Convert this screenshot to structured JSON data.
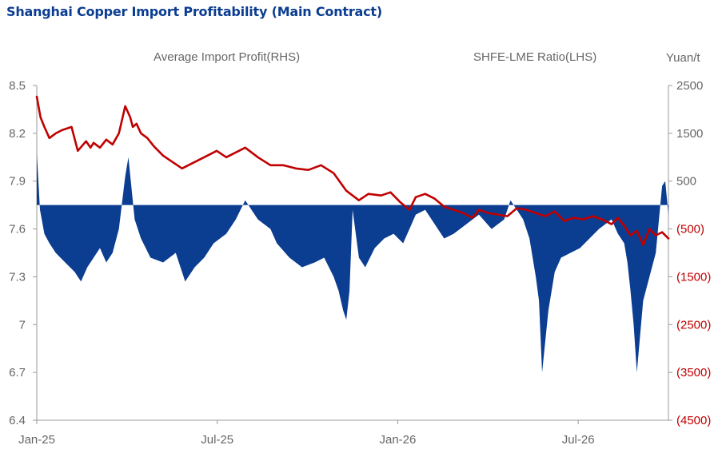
{
  "chart_data": {
    "type": "area+line",
    "title": "Shanghai Copper Import Profitability (Main Contract)",
    "legend": [
      "Average Import Profit(RHS)",
      "SHFE-LME Ratio(LHS)"
    ],
    "unit_right": "Yuan/t",
    "x_ticks": [
      "Jan-25",
      "Jul-25",
      "Jan-26",
      "Jul-26"
    ],
    "x_range": [
      "2025-01",
      "2026-10"
    ],
    "left_axis": {
      "min": 6.4,
      "max": 8.5,
      "step": 0.3,
      "labels": [
        "8.5",
        "8.2",
        "7.9",
        "7.6",
        "7.3",
        "7",
        "6.7",
        "6.4"
      ]
    },
    "right_axis": {
      "min": -4500,
      "max": 2500,
      "step": 1000,
      "labels": [
        "2500",
        "1500",
        "500",
        "(500)",
        "(1500)",
        "(2500)",
        "(3500)",
        "(4500)"
      ]
    },
    "colors": {
      "profit": "#0b3d91",
      "ratio": "#c00000",
      "negative_label": "#c00000",
      "axis_text": "#666666"
    },
    "series": [
      {
        "name": "SHFE-LME Ratio(LHS)",
        "axis": "left",
        "style": "line",
        "x": [
          0,
          0.006,
          0.012,
          0.02,
          0.03,
          0.04,
          0.055,
          0.065,
          0.078,
          0.085,
          0.09,
          0.1,
          0.11,
          0.12,
          0.13,
          0.14,
          0.148,
          0.152,
          0.158,
          0.165,
          0.175,
          0.185,
          0.2,
          0.215,
          0.23,
          0.24,
          0.255,
          0.27,
          0.285,
          0.3,
          0.315,
          0.33,
          0.35,
          0.37,
          0.39,
          0.41,
          0.43,
          0.45,
          0.47,
          0.49,
          0.51,
          0.525,
          0.545,
          0.56,
          0.575,
          0.59,
          0.6,
          0.615,
          0.63,
          0.645,
          0.66,
          0.675,
          0.69,
          0.7,
          0.715,
          0.73,
          0.745,
          0.76,
          0.775,
          0.79,
          0.805,
          0.82,
          0.835,
          0.85,
          0.865,
          0.88,
          0.895,
          0.91,
          0.92,
          0.93,
          0.94,
          0.95,
          0.96,
          0.97,
          0.98,
          0.99,
          1.0
        ],
        "values": [
          8.43,
          8.3,
          8.24,
          8.17,
          8.2,
          8.22,
          8.24,
          8.09,
          8.15,
          8.11,
          8.14,
          8.11,
          8.16,
          8.13,
          8.2,
          8.37,
          8.3,
          8.24,
          8.26,
          8.2,
          8.17,
          8.12,
          8.06,
          8.02,
          7.98,
          8.0,
          8.03,
          8.06,
          8.09,
          8.05,
          8.08,
          8.11,
          8.05,
          8.0,
          8.0,
          7.98,
          7.97,
          8.0,
          7.95,
          7.84,
          7.78,
          7.82,
          7.81,
          7.83,
          7.77,
          7.72,
          7.8,
          7.82,
          7.79,
          7.74,
          7.72,
          7.7,
          7.67,
          7.72,
          7.7,
          7.69,
          7.68,
          7.73,
          7.72,
          7.7,
          7.68,
          7.71,
          7.65,
          7.67,
          7.66,
          7.68,
          7.66,
          7.63,
          7.67,
          7.62,
          7.56,
          7.59,
          7.5,
          7.6,
          7.56,
          7.58,
          7.54
        ]
      },
      {
        "name": "Average Import Profit(RHS)",
        "axis": "right",
        "style": "area",
        "x": [
          0,
          0.005,
          0.012,
          0.02,
          0.03,
          0.045,
          0.06,
          0.07,
          0.08,
          0.09,
          0.1,
          0.11,
          0.12,
          0.13,
          0.14,
          0.145,
          0.155,
          0.165,
          0.18,
          0.2,
          0.22,
          0.235,
          0.25,
          0.265,
          0.28,
          0.3,
          0.315,
          0.33,
          0.35,
          0.37,
          0.38,
          0.4,
          0.42,
          0.44,
          0.455,
          0.47,
          0.478,
          0.485,
          0.49,
          0.495,
          0.5,
          0.51,
          0.52,
          0.535,
          0.55,
          0.565,
          0.58,
          0.59,
          0.6,
          0.615,
          0.63,
          0.645,
          0.66,
          0.68,
          0.7,
          0.72,
          0.74,
          0.75,
          0.76,
          0.77,
          0.78,
          0.79,
          0.795,
          0.8,
          0.81,
          0.82,
          0.83,
          0.845,
          0.86,
          0.875,
          0.89,
          0.9,
          0.91,
          0.92,
          0.93,
          0.935,
          0.94,
          0.945,
          0.95,
          0.96,
          0.97,
          0.98,
          0.99,
          0.995,
          1.0
        ],
        "values": [
          1100,
          -100,
          -600,
          -800,
          -1000,
          -1200,
          -1400,
          -1600,
          -1300,
          -1100,
          -900,
          -1200,
          -1000,
          -500,
          600,
          1000,
          -300,
          -700,
          -1100,
          -1200,
          -1000,
          -1600,
          -1300,
          -1100,
          -800,
          -600,
          -300,
          100,
          -300,
          -500,
          -800,
          -1100,
          -1300,
          -1200,
          -1100,
          -1500,
          -1800,
          -2200,
          -2400,
          -1800,
          -100,
          -1100,
          -1300,
          -900,
          -700,
          -600,
          -800,
          -500,
          -200,
          -100,
          -400,
          -700,
          -600,
          -400,
          -200,
          -500,
          -300,
          100,
          -100,
          -300,
          -700,
          -1500,
          -2000,
          -3500,
          -2200,
          -1400,
          -1100,
          -1000,
          -900,
          -700,
          -500,
          -400,
          -300,
          -600,
          -800,
          -1200,
          -1800,
          -2500,
          -3500,
          -2000,
          -1500,
          -1000,
          400,
          500,
          -200
        ]
      }
    ]
  }
}
